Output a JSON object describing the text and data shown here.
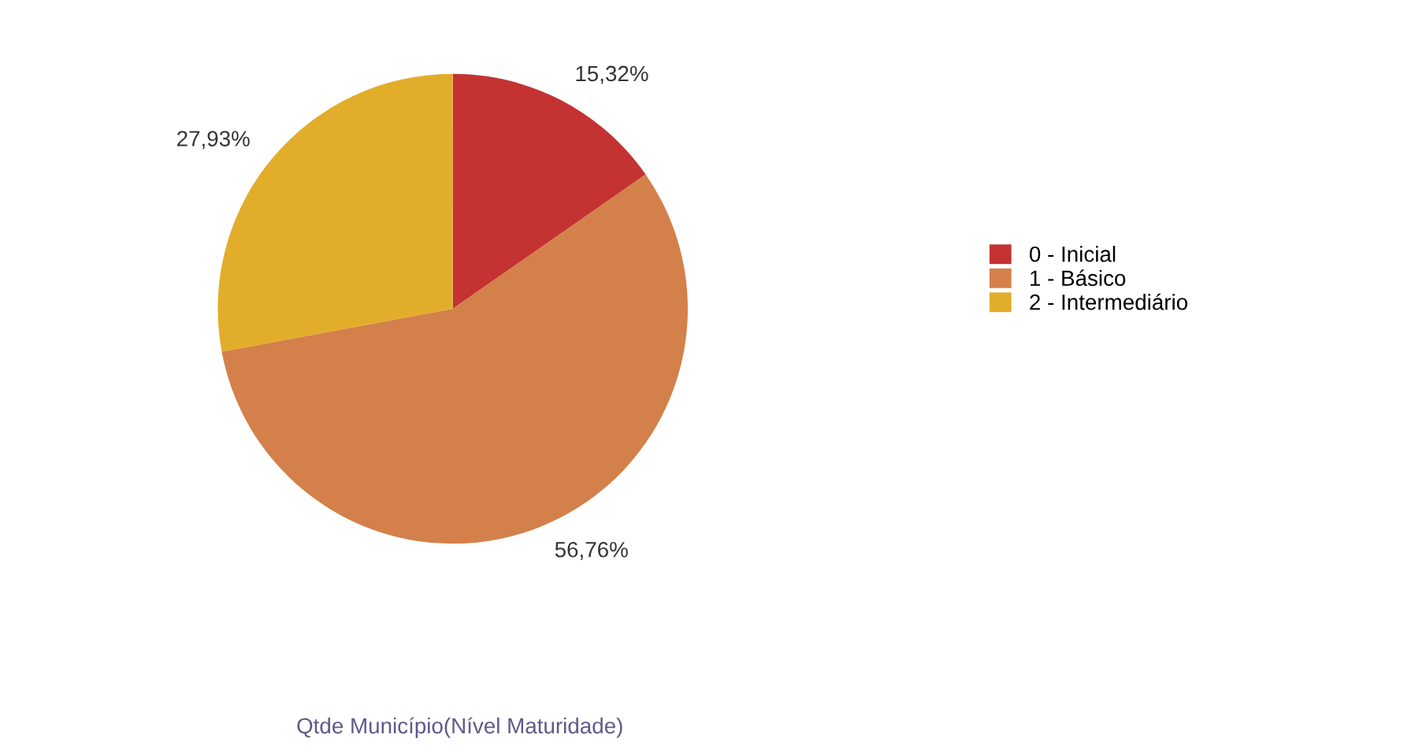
{
  "chart_data": {
    "type": "pie",
    "title": "Qtde Município(Nível Maturidade)",
    "categories": [
      "0 - Inicial",
      "1 - Básico",
      "2 - Intermediário"
    ],
    "values": [
      15.32,
      56.76,
      27.93
    ],
    "colors": [
      "#c43232",
      "#d4804a",
      "#e2ad2a"
    ],
    "value_labels": [
      "15,32%",
      "56,76%",
      "27,93%"
    ],
    "legend": "right"
  }
}
